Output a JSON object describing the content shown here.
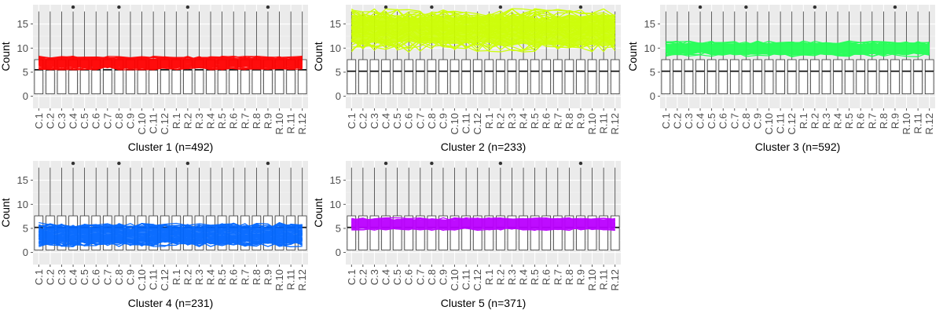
{
  "figure": {
    "ylabel": "Count",
    "categories": [
      "C.1",
      "C.2",
      "C.3",
      "C.4",
      "C.5",
      "C.6",
      "C.7",
      "C.8",
      "C.9",
      "C.10",
      "C.11",
      "C.12",
      "R.1",
      "R.2",
      "R.3",
      "R.4",
      "R.5",
      "R.6",
      "R.7",
      "R.8",
      "R.9",
      "R.10",
      "R.11",
      "R.12"
    ]
  },
  "chart_data": [
    {
      "type": "boxplot",
      "title": "Cluster 1 (n=492)",
      "ylabel": "Count",
      "ylim": [
        -2.5,
        19
      ],
      "yticks": [
        0,
        5,
        10,
        15
      ],
      "box": {
        "q1": 0.5,
        "median": 5.5,
        "q3": 7.6,
        "whisker_low": 0,
        "whisker_high": 17.6
      },
      "outlier_categories": [
        "C.4",
        "C.8",
        "R.2",
        "R.9"
      ],
      "outlier_value": 18.5,
      "profiles": {
        "color": "#ff0000",
        "low": 5.5,
        "high": 8.3
      }
    },
    {
      "type": "boxplot",
      "title": "Cluster 2 (n=233)",
      "ylabel": "Count",
      "ylim": [
        -2.5,
        19
      ],
      "yticks": [
        0,
        5,
        10,
        15
      ],
      "box": {
        "q1": 0.5,
        "median": 5.2,
        "q3": 7.6,
        "whisker_low": 0,
        "whisker_high": 17.6
      },
      "outlier_categories": [
        "C.4",
        "C.8",
        "R.2",
        "R.9"
      ],
      "outlier_value": 18.5,
      "profiles": {
        "color": "#ccff00",
        "low": 9.2,
        "high": 18.2
      }
    },
    {
      "type": "boxplot",
      "title": "Cluster 3 (n=592)",
      "ylabel": "Count",
      "ylim": [
        -2.5,
        19
      ],
      "yticks": [
        0,
        5,
        10,
        15
      ],
      "box": {
        "q1": 0.5,
        "median": 5.2,
        "q3": 7.6,
        "whisker_low": 0,
        "whisker_high": 17.6
      },
      "outlier_categories": [
        "C.4",
        "C.8",
        "R.2",
        "R.9"
      ],
      "outlier_value": 18.5,
      "profiles": {
        "color": "#22ff55",
        "low": 8.2,
        "high": 11.5
      }
    },
    {
      "type": "boxplot",
      "title": "Cluster 4 (n=231)",
      "ylabel": "Count",
      "ylim": [
        -2.5,
        19
      ],
      "yticks": [
        0,
        5,
        10,
        15
      ],
      "box": {
        "q1": 0.5,
        "median": 5.2,
        "q3": 7.6,
        "whisker_low": 0,
        "whisker_high": 17.6
      },
      "outlier_categories": [
        "C.4",
        "C.8",
        "R.2",
        "R.9"
      ],
      "outlier_value": 18.5,
      "profiles": {
        "color": "#0066ff",
        "low": 1.2,
        "high": 6.2
      }
    },
    {
      "type": "boxplot",
      "title": "Cluster 5 (n=371)",
      "ylabel": "Count",
      "ylim": [
        -2.5,
        19
      ],
      "yticks": [
        0,
        5,
        10,
        15
      ],
      "box": {
        "q1": 0.5,
        "median": 5.2,
        "q3": 7.6,
        "whisker_low": 0,
        "whisker_high": 17.6
      },
      "outlier_categories": [
        "C.4",
        "C.8",
        "R.2",
        "R.9"
      ],
      "outlier_value": 18.5,
      "profiles": {
        "color": "#bb00ff",
        "low": 4.6,
        "high": 7.2
      }
    }
  ]
}
